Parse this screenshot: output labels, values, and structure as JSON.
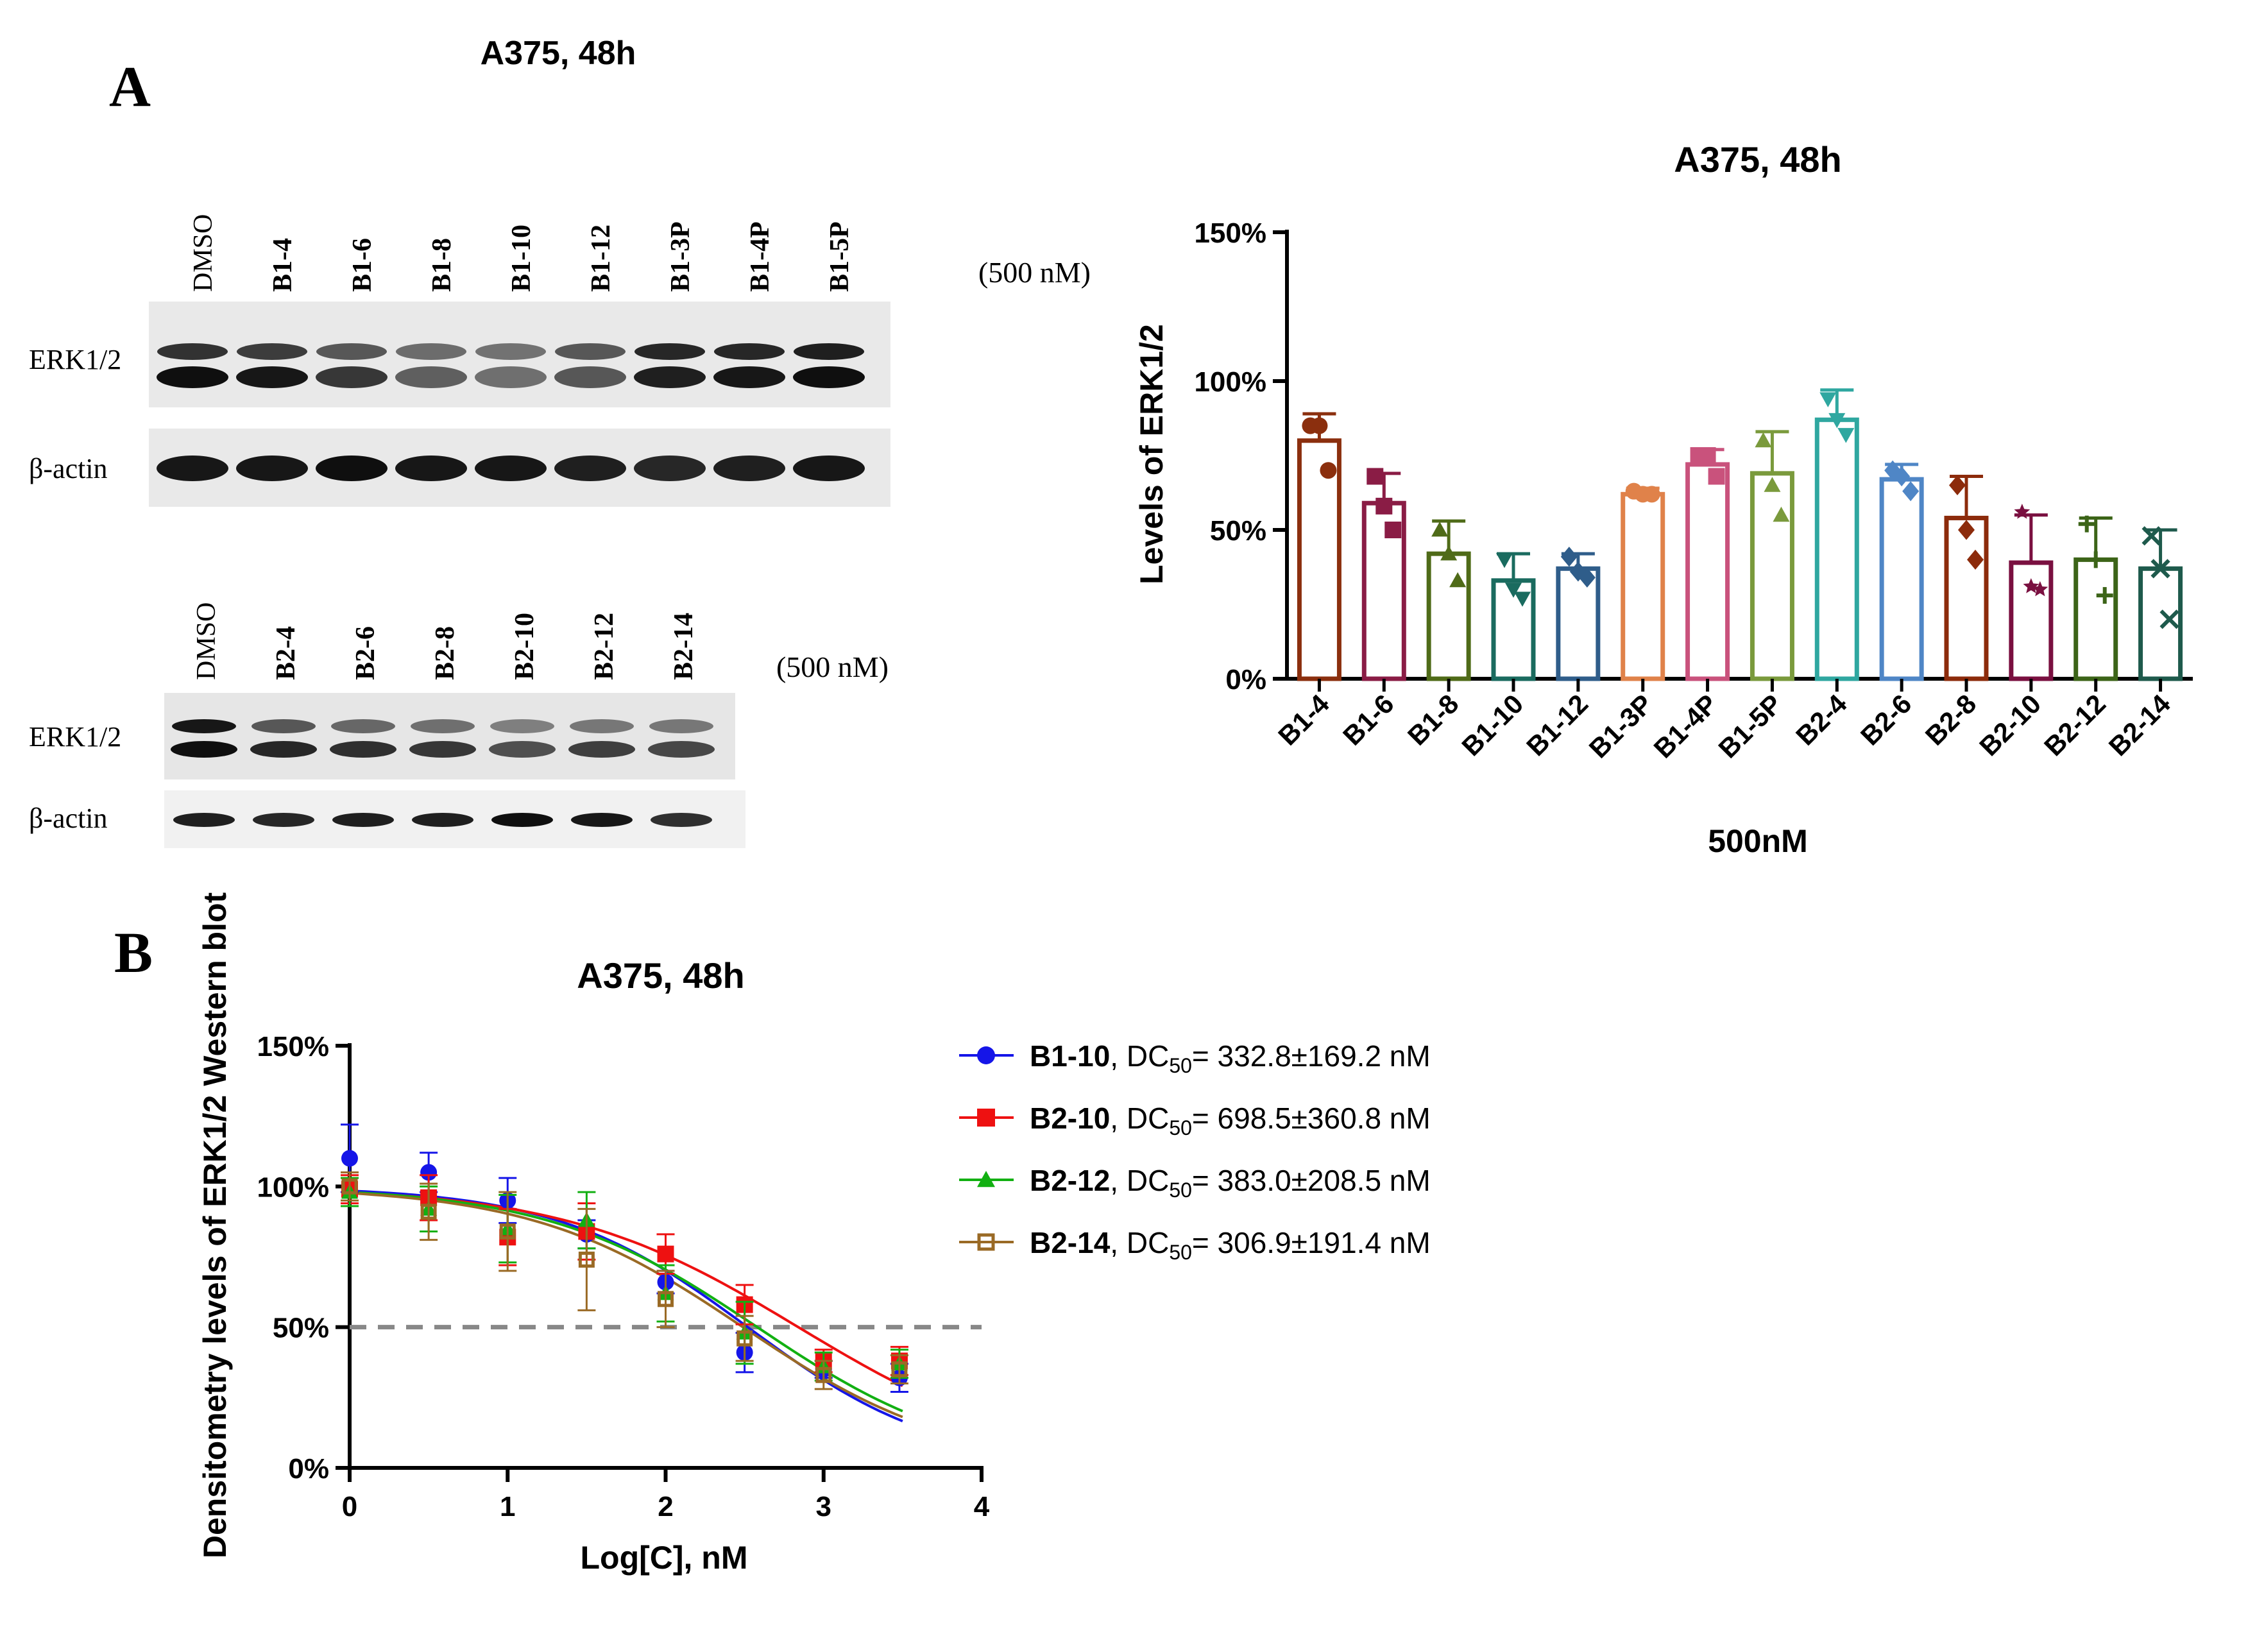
{
  "panel_labels": {
    "a": "A",
    "b": "B"
  },
  "blot1": {
    "title": "A375, 48h",
    "lanes": [
      "DMSO",
      "B1-4",
      "B1-6",
      "B1-8",
      "B1-10",
      "B1-12",
      "B1-3P",
      "B1-4P",
      "B1-5P"
    ],
    "conc": "(500 nM)",
    "rows": [
      "ERK1/2",
      "β-actin"
    ]
  },
  "blot2": {
    "lanes": [
      "DMSO",
      "B2-4",
      "B2-6",
      "B2-8",
      "B2-10",
      "B2-12",
      "B2-14"
    ],
    "conc": "(500 nM)",
    "rows": [
      "ERK1/2",
      "β-actin"
    ]
  },
  "chart_data": [
    {
      "type": "bar",
      "title": "A375,  48h",
      "xlabel": "500nM",
      "ylabel": "Levels of ERK1/2",
      "ylim": [
        0,
        150
      ],
      "yticks": [
        "0%",
        "50%",
        "100%",
        "150%"
      ],
      "categories": [
        "B1-4",
        "B1-6",
        "B1-8",
        "B1-10",
        "B1-12",
        "B1-3P",
        "B1-4P",
        "B1-5P",
        "B2-4",
        "B2-6",
        "B2-8",
        "B2-10",
        "B2-12",
        "B2-14"
      ],
      "values": [
        80,
        59,
        42,
        33,
        37,
        62,
        72,
        69,
        87,
        67,
        54,
        39,
        40,
        37
      ],
      "errors": [
        9,
        10,
        11,
        9,
        5,
        2,
        5,
        14,
        10,
        5,
        14,
        16,
        14,
        13
      ],
      "points": [
        [
          85,
          85,
          70
        ],
        [
          68,
          58,
          50
        ],
        [
          50,
          42,
          33
        ],
        [
          40,
          30,
          27
        ],
        [
          41,
          36,
          34
        ],
        [
          63,
          62,
          62
        ],
        [
          75,
          75,
          68
        ],
        [
          80,
          65,
          55
        ],
        [
          94,
          87,
          82
        ],
        [
          70,
          68,
          63
        ],
        [
          65,
          50,
          40
        ],
        [
          56,
          31,
          30
        ],
        [
          52,
          40,
          28
        ],
        [
          48,
          37,
          20
        ]
      ],
      "colors": [
        "#8B2F0E",
        "#8A1C45",
        "#4F6B18",
        "#1A6B5F",
        "#2F5D8A",
        "#E0824A",
        "#C9527C",
        "#7A9A3C",
        "#2FA7A0",
        "#4F86C6",
        "#8C2B0B",
        "#7A1040",
        "#3C6418",
        "#1E5A4C"
      ],
      "markers": [
        "circle",
        "square",
        "triangle-up",
        "triangle-down",
        "diamond",
        "circle",
        "square",
        "triangle-up",
        "triangle-down",
        "diamond",
        "diamond",
        "star",
        "plus",
        "x"
      ]
    },
    {
      "type": "scatter",
      "title": "A375,  48h",
      "xlabel": "Log[C], nM",
      "ylabel": "Densitometry levels of ERK1/2 Western blot",
      "xlim": [
        0,
        4
      ],
      "ylim": [
        0,
        150
      ],
      "xticks": [
        "0",
        "1",
        "2",
        "3",
        "4"
      ],
      "yticks": [
        "0%",
        "50%",
        "100%",
        "150%"
      ],
      "reference_line": 50,
      "x": [
        0,
        0.5,
        1,
        1.5,
        2,
        2.5,
        3,
        3.48
      ],
      "series": [
        {
          "name": "B1-10",
          "dc_prefix": "DC",
          "dc_sub": "50",
          "dc_value": "= 332.8±169.2 nM",
          "color": "#1515E8",
          "marker": "circle",
          "values": [
            110,
            105,
            95,
            83,
            66,
            41,
            35,
            32
          ],
          "errors": [
            12,
            7,
            8,
            5,
            4,
            7,
            3,
            5
          ],
          "fit": {
            "top": 100,
            "bottom": 0,
            "logdc": 2.52,
            "hill": 0.55
          }
        },
        {
          "name": "B2-10",
          "dc_prefix": "DC",
          "dc_sub": "50",
          "dc_value": "= 698.5±360.8 nM",
          "color": "#EE1111",
          "marker": "square",
          "values": [
            99,
            96,
            82,
            84,
            76,
            58,
            38,
            38
          ],
          "errors": [
            5,
            8,
            10,
            10,
            7,
            7,
            4,
            5
          ],
          "fit": {
            "top": 100,
            "bottom": 0,
            "logdc": 2.84,
            "hill": 0.45
          }
        },
        {
          "name": "B2-12",
          "dc_prefix": "DC",
          "dc_sub": "50",
          "dc_value": "= 383.0±208.5 nM",
          "color": "#12B012",
          "marker": "triangle-up",
          "values": [
            98,
            92,
            85,
            88,
            62,
            48,
            36,
            37
          ],
          "errors": [
            5,
            8,
            12,
            10,
            10,
            11,
            5,
            5
          ],
          "fit": {
            "top": 100,
            "bottom": 0,
            "logdc": 2.58,
            "hill": 0.5
          }
        },
        {
          "name": "B2-14",
          "dc_prefix": "DC",
          "dc_sub": "50",
          "dc_value": "= 306.9±191.4 nM",
          "color": "#9A6A25",
          "marker": "square-open",
          "values": [
            100,
            91,
            84,
            74,
            60,
            46,
            33,
            35
          ],
          "errors": [
            5,
            10,
            14,
            18,
            10,
            8,
            5,
            5
          ],
          "fit": {
            "top": 100,
            "bottom": 0,
            "logdc": 2.49,
            "hill": 0.5
          }
        }
      ]
    }
  ]
}
